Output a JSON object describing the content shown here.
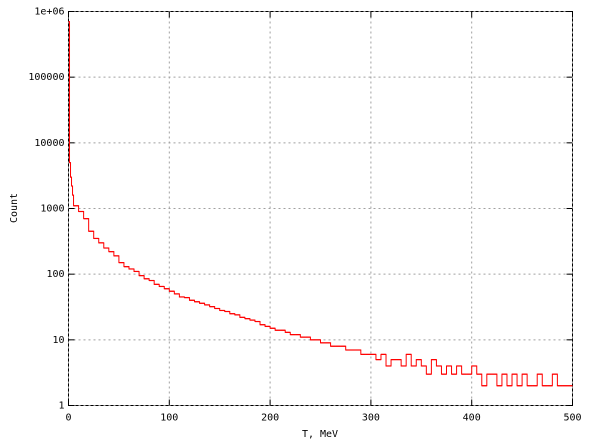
{
  "chart_data": {
    "type": "histogram",
    "xlabel": "T, MeV",
    "ylabel": "Count",
    "color": "#ff0000",
    "log_y": true,
    "grid": true,
    "xlim": [
      0,
      500
    ],
    "xticks": [
      0,
      100,
      200,
      300,
      400,
      500
    ],
    "ylim": [
      1,
      1000000
    ],
    "yticks": [
      1,
      10,
      100,
      1000,
      10000,
      100000,
      {
        "value": 1000000,
        "label": "1e+06"
      }
    ],
    "bins": [
      0,
      1,
      2,
      3,
      4,
      5,
      10,
      15,
      20,
      25,
      30,
      35,
      40,
      45,
      50,
      55,
      60,
      65,
      70,
      75,
      80,
      85,
      90,
      95,
      100,
      105,
      110,
      115,
      120,
      125,
      130,
      135,
      140,
      145,
      150,
      155,
      160,
      165,
      170,
      175,
      180,
      185,
      190,
      195,
      200,
      205,
      210,
      215,
      220,
      225,
      230,
      235,
      240,
      245,
      250,
      255,
      260,
      265,
      270,
      275,
      280,
      285,
      290,
      295,
      300,
      305,
      310,
      315,
      320,
      325,
      330,
      335,
      340,
      345,
      350,
      355,
      360,
      365,
      370,
      375,
      380,
      385,
      390,
      395,
      400,
      405,
      410,
      415,
      420,
      425,
      430,
      435,
      440,
      445,
      450,
      455,
      460,
      465,
      470,
      475,
      480,
      485,
      490,
      495,
      500
    ],
    "values": [
      700000,
      5000,
      3000,
      2200,
      1600,
      1100,
      900,
      700,
      450,
      350,
      300,
      250,
      220,
      190,
      150,
      130,
      120,
      110,
      95,
      85,
      80,
      70,
      65,
      60,
      55,
      50,
      45,
      44,
      40,
      38,
      36,
      34,
      32,
      30,
      28,
      27,
      25,
      24,
      22,
      21,
      20,
      19,
      17,
      16,
      15,
      14,
      14,
      13,
      12,
      12,
      11,
      11,
      10,
      10,
      9,
      9,
      8,
      8,
      8,
      7,
      7,
      7,
      6,
      6,
      6,
      5,
      6,
      4,
      5,
      5,
      4,
      6,
      4,
      5,
      4,
      3,
      5,
      4,
      3,
      4,
      3,
      4,
      3,
      3,
      4,
      3,
      2,
      3,
      3,
      2,
      3,
      2,
      3,
      2,
      3,
      2,
      2,
      3,
      2,
      2,
      3,
      2,
      2,
      2
    ]
  }
}
